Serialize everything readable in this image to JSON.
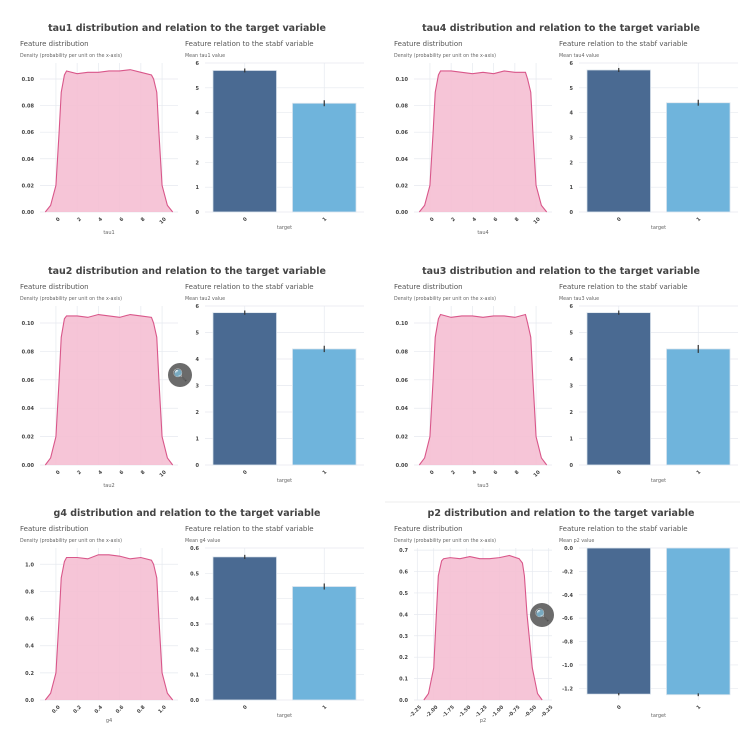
{
  "colors": {
    "density_fill": "#f5bfd3",
    "density_line": "#d9578a",
    "bar_0": "#4a6a92",
    "bar_1": "#6fb4dc",
    "grid": "#e6e9ef",
    "text": "#444444"
  },
  "icons": {
    "zoom_button": "zoom-in-icon"
  },
  "chart_data": [
    {
      "type": "area+bar",
      "feature": "tau1",
      "title": "tau1 distribution and relation to the target variable",
      "left": {
        "subtitle": "Feature distribution",
        "ylabel": "Density (probability per unit on the x-axis)",
        "xlabel": "tau1",
        "xticks": [
          "0",
          "2",
          "4",
          "6",
          "8",
          "10"
        ],
        "xtick_values": [
          0,
          2,
          4,
          6,
          8,
          10
        ],
        "xlim": [
          -1.5,
          11.5
        ],
        "yticks": [
          "0.00",
          "0.02",
          "0.04",
          "0.06",
          "0.08",
          "0.10"
        ],
        "ytick_values": [
          0,
          0.02,
          0.04,
          0.06,
          0.08,
          0.1
        ],
        "ylim": [
          0,
          0.112
        ],
        "x": [
          -1,
          -0.5,
          0,
          0.3,
          0.5,
          0.8,
          1,
          2,
          3,
          4,
          5,
          6,
          7,
          8,
          9,
          9.2,
          9.5,
          9.7,
          10,
          10.5,
          11
        ],
        "y": [
          0,
          0.005,
          0.02,
          0.06,
          0.09,
          0.103,
          0.106,
          0.104,
          0.105,
          0.105,
          0.106,
          0.106,
          0.107,
          0.105,
          0.103,
          0.1,
          0.09,
          0.06,
          0.02,
          0.005,
          0
        ]
      },
      "right": {
        "subtitle": "Feature relation to the stabf variable",
        "ylabel": "Mean tau1 value",
        "xlabel": "target",
        "categories": [
          "0",
          "1"
        ],
        "values": [
          5.7,
          4.38
        ],
        "err": [
          0.08,
          0.12
        ],
        "yticks": [
          "0",
          "1",
          "2",
          "3",
          "4",
          "5",
          "6"
        ],
        "ytick_values": [
          0,
          1,
          2,
          3,
          4,
          5,
          6
        ],
        "ylim": [
          0,
          6
        ]
      }
    },
    {
      "type": "area+bar",
      "feature": "tau4",
      "title": "tau4 distribution and relation to the target variable",
      "left": {
        "subtitle": "Feature distribution",
        "ylabel": "Density (probability per unit on the x-axis)",
        "xlabel": "tau4",
        "xticks": [
          "0",
          "2",
          "4",
          "6",
          "8",
          "10"
        ],
        "xtick_values": [
          0,
          2,
          4,
          6,
          8,
          10
        ],
        "xlim": [
          -1.5,
          11.5
        ],
        "yticks": [
          "0.00",
          "0.02",
          "0.04",
          "0.06",
          "0.08",
          "0.10"
        ],
        "ytick_values": [
          0,
          0.02,
          0.04,
          0.06,
          0.08,
          0.1
        ],
        "ylim": [
          0,
          0.112
        ],
        "x": [
          -1,
          -0.5,
          0,
          0.3,
          0.5,
          0.8,
          1,
          2,
          3,
          4,
          5,
          6,
          7,
          8,
          9,
          9.2,
          9.5,
          9.7,
          10,
          10.5,
          11
        ],
        "y": [
          0,
          0.005,
          0.02,
          0.06,
          0.09,
          0.103,
          0.106,
          0.106,
          0.105,
          0.104,
          0.105,
          0.104,
          0.106,
          0.105,
          0.105,
          0.1,
          0.09,
          0.06,
          0.02,
          0.005,
          0
        ]
      },
      "right": {
        "subtitle": "Feature relation to the stabf variable",
        "ylabel": "Mean tau4 value",
        "xlabel": "target",
        "categories": [
          "0",
          "1"
        ],
        "values": [
          5.72,
          4.4
        ],
        "err": [
          0.08,
          0.12
        ],
        "yticks": [
          "0",
          "1",
          "2",
          "3",
          "4",
          "5",
          "6"
        ],
        "ytick_values": [
          0,
          1,
          2,
          3,
          4,
          5,
          6
        ],
        "ylim": [
          0,
          6
        ]
      }
    },
    {
      "type": "area+bar",
      "feature": "tau2",
      "title": "tau2 distribution and relation to the target variable",
      "left": {
        "subtitle": "Feature distribution",
        "ylabel": "Density (probability per unit on the x-axis)",
        "xlabel": "tau2",
        "xticks": [
          "0",
          "2",
          "4",
          "6",
          "8",
          "10"
        ],
        "xtick_values": [
          0,
          2,
          4,
          6,
          8,
          10
        ],
        "xlim": [
          -1.5,
          11.5
        ],
        "yticks": [
          "0.00",
          "0.02",
          "0.04",
          "0.06",
          "0.08",
          "0.10"
        ],
        "ytick_values": [
          0,
          0.02,
          0.04,
          0.06,
          0.08,
          0.1
        ],
        "ylim": [
          0,
          0.112
        ],
        "x": [
          -1,
          -0.5,
          0,
          0.3,
          0.5,
          0.8,
          1,
          2,
          3,
          4,
          5,
          6,
          7,
          8,
          9,
          9.2,
          9.5,
          9.7,
          10,
          10.5,
          11
        ],
        "y": [
          0,
          0.005,
          0.02,
          0.06,
          0.09,
          0.103,
          0.105,
          0.105,
          0.104,
          0.106,
          0.105,
          0.104,
          0.106,
          0.105,
          0.104,
          0.1,
          0.09,
          0.06,
          0.02,
          0.005,
          0
        ]
      },
      "right": {
        "subtitle": "Feature relation to the stabf variable",
        "ylabel": "Mean tau2 value",
        "xlabel": "target",
        "categories": [
          "0",
          "1"
        ],
        "values": [
          5.75,
          4.38
        ],
        "err": [
          0.08,
          0.12
        ],
        "yticks": [
          "0",
          "1",
          "2",
          "3",
          "4",
          "5",
          "6"
        ],
        "ytick_values": [
          0,
          1,
          2,
          3,
          4,
          5,
          6
        ],
        "ylim": [
          0,
          6
        ]
      }
    },
    {
      "type": "area+bar",
      "feature": "tau3",
      "title": "tau3 distribution and relation to the target variable",
      "left": {
        "subtitle": "Feature distribution",
        "ylabel": "Density (probability per unit on the x-axis)",
        "xlabel": "tau3",
        "xticks": [
          "0",
          "2",
          "4",
          "6",
          "8",
          "10"
        ],
        "xtick_values": [
          0,
          2,
          4,
          6,
          8,
          10
        ],
        "xlim": [
          -1.5,
          11.5
        ],
        "yticks": [
          "0.00",
          "0.02",
          "0.04",
          "0.06",
          "0.08",
          "0.10"
        ],
        "ytick_values": [
          0,
          0.02,
          0.04,
          0.06,
          0.08,
          0.1
        ],
        "ylim": [
          0,
          0.112
        ],
        "x": [
          -1,
          -0.5,
          0,
          0.3,
          0.5,
          0.8,
          1,
          2,
          3,
          4,
          5,
          6,
          7,
          8,
          9,
          9.2,
          9.5,
          9.7,
          10,
          10.5,
          11
        ],
        "y": [
          0,
          0.005,
          0.02,
          0.06,
          0.09,
          0.103,
          0.106,
          0.104,
          0.105,
          0.105,
          0.104,
          0.105,
          0.105,
          0.104,
          0.106,
          0.1,
          0.09,
          0.06,
          0.02,
          0.005,
          0
        ]
      },
      "right": {
        "subtitle": "Feature relation to the stabf variable",
        "ylabel": "Mean tau3 value",
        "xlabel": "target",
        "categories": [
          "0",
          "1"
        ],
        "values": [
          5.75,
          4.38
        ],
        "err": [
          0.08,
          0.15
        ],
        "yticks": [
          "0",
          "1",
          "2",
          "3",
          "4",
          "5",
          "6"
        ],
        "ytick_values": [
          0,
          1,
          2,
          3,
          4,
          5,
          6
        ],
        "ylim": [
          0,
          6
        ]
      }
    },
    {
      "type": "area+bar",
      "feature": "g4",
      "title": "g4 distribution and relation to the target variable",
      "left": {
        "subtitle": "Feature distribution",
        "ylabel": "Density (probability per unit on the x-axis)",
        "xlabel": "g4",
        "xticks": [
          "0.0",
          "0.2",
          "0.4",
          "0.6",
          "0.8",
          "1.0"
        ],
        "xtick_values": [
          0,
          0.2,
          0.4,
          0.6,
          0.8,
          1.0
        ],
        "xlim": [
          -0.15,
          1.15
        ],
        "yticks": [
          "0.0",
          "0.2",
          "0.4",
          "0.6",
          "0.8",
          "1.0"
        ],
        "ytick_values": [
          0,
          0.2,
          0.4,
          0.6,
          0.8,
          1.0
        ],
        "ylim": [
          0,
          1.12
        ],
        "x": [
          -0.1,
          -0.05,
          0,
          0.03,
          0.05,
          0.08,
          0.1,
          0.2,
          0.3,
          0.4,
          0.5,
          0.6,
          0.7,
          0.8,
          0.9,
          0.92,
          0.95,
          0.97,
          1.0,
          1.05,
          1.1
        ],
        "y": [
          0,
          0.05,
          0.2,
          0.6,
          0.9,
          1.02,
          1.05,
          1.05,
          1.04,
          1.07,
          1.07,
          1.06,
          1.04,
          1.05,
          1.03,
          1.0,
          0.9,
          0.6,
          0.2,
          0.05,
          0
        ]
      },
      "right": {
        "subtitle": "Feature relation to the stabf variable",
        "ylabel": "Mean g4 value",
        "xlabel": "target",
        "categories": [
          "0",
          "1"
        ],
        "values": [
          0.565,
          0.448
        ],
        "err": [
          0.008,
          0.012
        ],
        "yticks": [
          "0.0",
          "0.1",
          "0.2",
          "0.3",
          "0.4",
          "0.5",
          "0.6"
        ],
        "ytick_values": [
          0,
          0.1,
          0.2,
          0.3,
          0.4,
          0.5,
          0.6
        ],
        "ylim": [
          0,
          0.6
        ]
      }
    },
    {
      "type": "area+bar",
      "feature": "p2",
      "title": "p2 distribution and relation to the target variable",
      "left": {
        "subtitle": "Feature distribution",
        "ylabel": "Density (probability per unit on the x-axis)",
        "xlabel": "p2",
        "xticks": [
          "-2.25",
          "-2.00",
          "-1.75",
          "-1.50",
          "-1.25",
          "-1.00",
          "-0.75",
          "-0.50",
          "-0.25"
        ],
        "xtick_values": [
          -2.25,
          -2,
          -1.75,
          -1.5,
          -1.25,
          -1,
          -0.75,
          -0.5,
          -0.25
        ],
        "xlim": [
          -2.3,
          -0.2
        ],
        "yticks": [
          "0.0",
          "0.1",
          "0.2",
          "0.3",
          "0.4",
          "0.5",
          "0.6",
          "0.7"
        ],
        "ytick_values": [
          0,
          0.1,
          0.2,
          0.3,
          0.4,
          0.5,
          0.6,
          0.7
        ],
        "ylim": [
          0,
          0.71
        ],
        "x": [
          -2.15,
          -2.08,
          -2.0,
          -1.96,
          -1.93,
          -1.88,
          -1.85,
          -1.75,
          -1.6,
          -1.45,
          -1.3,
          -1.15,
          -1.0,
          -0.85,
          -0.7,
          -0.65,
          -0.62,
          -0.58,
          -0.5,
          -0.42,
          -0.35
        ],
        "y": [
          0,
          0.03,
          0.15,
          0.4,
          0.58,
          0.65,
          0.66,
          0.665,
          0.66,
          0.67,
          0.66,
          0.66,
          0.665,
          0.675,
          0.66,
          0.64,
          0.58,
          0.4,
          0.15,
          0.03,
          0
        ]
      },
      "right": {
        "subtitle": "Feature relation to the stabf variable",
        "ylabel": "Mean p2 value",
        "xlabel": "target",
        "categories": [
          "0",
          "1"
        ],
        "values": [
          -1.25,
          -1.255
        ],
        "err": [
          0.01,
          0.012
        ],
        "yticks": [
          "0.0",
          "-0.2",
          "-0.4",
          "-0.6",
          "-0.8",
          "-1.0",
          "-1.2"
        ],
        "ytick_values": [
          0,
          -0.2,
          -0.4,
          -0.6,
          -0.8,
          -1.0,
          -1.2
        ],
        "ylim": [
          -1.3,
          0
        ]
      }
    }
  ]
}
